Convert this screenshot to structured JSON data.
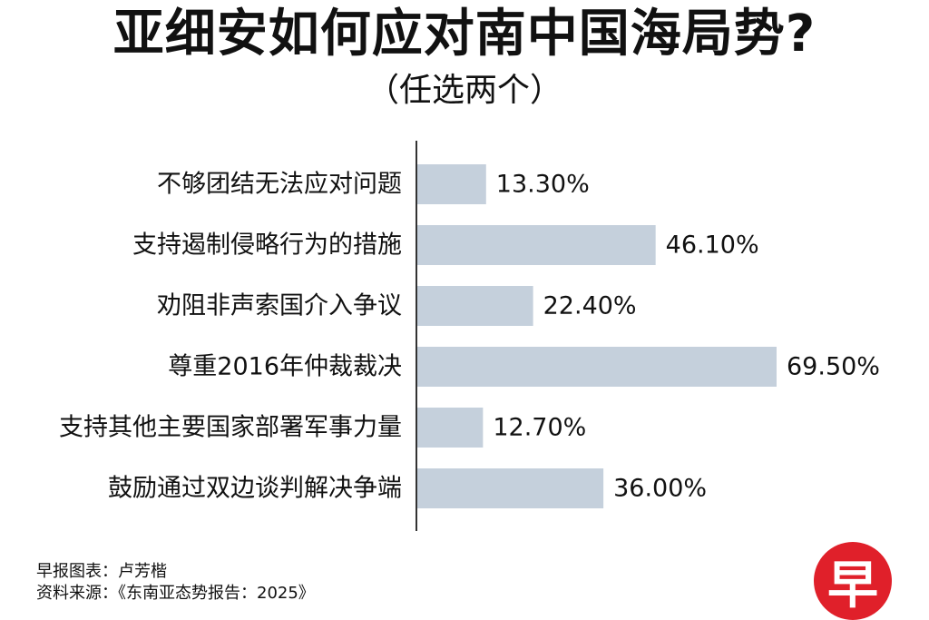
{
  "header": {
    "title": "亚细安如何应对南中国海局势?",
    "subtitle": "（任选两个）"
  },
  "chart_data": {
    "type": "bar",
    "orientation": "horizontal",
    "title": "亚细安如何应对南中国海局势?",
    "subtitle": "（任选两个）",
    "categories": [
      "不够团结无法应对问题",
      "支持遏制侵略行为的措施",
      "劝阻非声索国介入争议",
      "尊重2016年仲裁裁决",
      "支持其他主要国家部署军事力量",
      "鼓励通过双边谈判解决争端"
    ],
    "values": [
      13.3,
      46.1,
      22.4,
      69.5,
      12.7,
      36.0
    ],
    "value_labels": [
      "13.30%",
      "46.10%",
      "22.40%",
      "69.50%",
      "12.70%",
      "36.00%"
    ],
    "xlim": [
      0,
      100
    ],
    "grid": false,
    "legend": "none",
    "bar_color": "#c5d0dc",
    "axis_color": "#333333"
  },
  "footer": {
    "credit_line": "早报图表：卢芳楷",
    "source_line": "资料来源：《东南亚态势报告：2025》"
  },
  "logo": {
    "text": "早",
    "color": "#e0202a"
  }
}
